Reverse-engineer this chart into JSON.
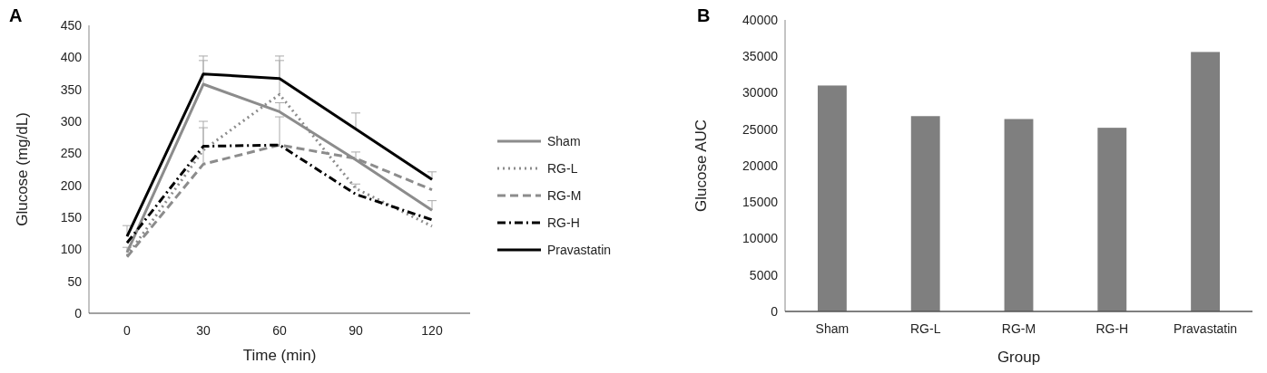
{
  "chart_data": [
    {
      "type": "line",
      "title": "A",
      "xlabel": "Time (min)",
      "ylabel": "Glucose (mg/dL)",
      "x": [
        0,
        30,
        60,
        90,
        120
      ],
      "xlim": [
        -15,
        135
      ],
      "xticks": [
        0,
        30,
        60,
        90,
        120
      ],
      "ylim": [
        0,
        450
      ],
      "yticks": [
        0,
        50,
        100,
        150,
        200,
        250,
        300,
        350,
        400,
        450
      ],
      "legend": "right",
      "marker": "none",
      "series": [
        {
          "name": "Sham",
          "color": "#8c8c8c",
          "line_style": "solid",
          "values": [
            95,
            358,
            315,
            240,
            161
          ],
          "errors": [
            [
              95,
              103
            ],
            [
              358,
              395
            ],
            [
              315,
              329
            ],
            [
              240,
              252
            ],
            [
              161,
              176
            ]
          ]
        },
        {
          "name": "RG-L",
          "color": "#8c8c8c",
          "line_style": "dotted",
          "values": [
            90,
            255,
            342,
            195,
            136
          ],
          "errors": [
            null,
            [
              255,
              300
            ],
            [
              342,
              395
            ],
            [
              195,
              202
            ],
            null
          ]
        },
        {
          "name": "RG-M",
          "color": "#8c8c8c",
          "line_style": "dashed",
          "values": [
            88,
            233,
            263,
            242,
            193
          ],
          "errors": [
            null,
            [
              233,
              290
            ],
            [
              263,
              307
            ],
            null,
            null
          ]
        },
        {
          "name": "RG-H",
          "color": "#000000",
          "line_style": "dashdot",
          "values": [
            110,
            261,
            263,
            186,
            146
          ]
        },
        {
          "name": "Pravastatin",
          "color": "#000000",
          "line_style": "solid",
          "values": [
            120,
            374,
            367,
            288,
            209
          ],
          "errors": [
            [
              120,
              137
            ],
            [
              374,
              402
            ],
            [
              367,
              402
            ],
            [
              288,
              313
            ],
            [
              209,
              221
            ]
          ]
        }
      ]
    },
    {
      "type": "bar",
      "title": "B",
      "xlabel": "Group",
      "ylabel": "Glucose AUC",
      "categories": [
        "Sham",
        "RG-L",
        "RG-M",
        "RG-H",
        "Pravastatin"
      ],
      "values": [
        31000,
        26800,
        26400,
        25200,
        35600
      ],
      "color": "#7f7f7f",
      "ylim": [
        0,
        40000
      ],
      "yticks": [
        0,
        5000,
        10000,
        15000,
        20000,
        25000,
        30000,
        35000,
        40000
      ]
    }
  ]
}
